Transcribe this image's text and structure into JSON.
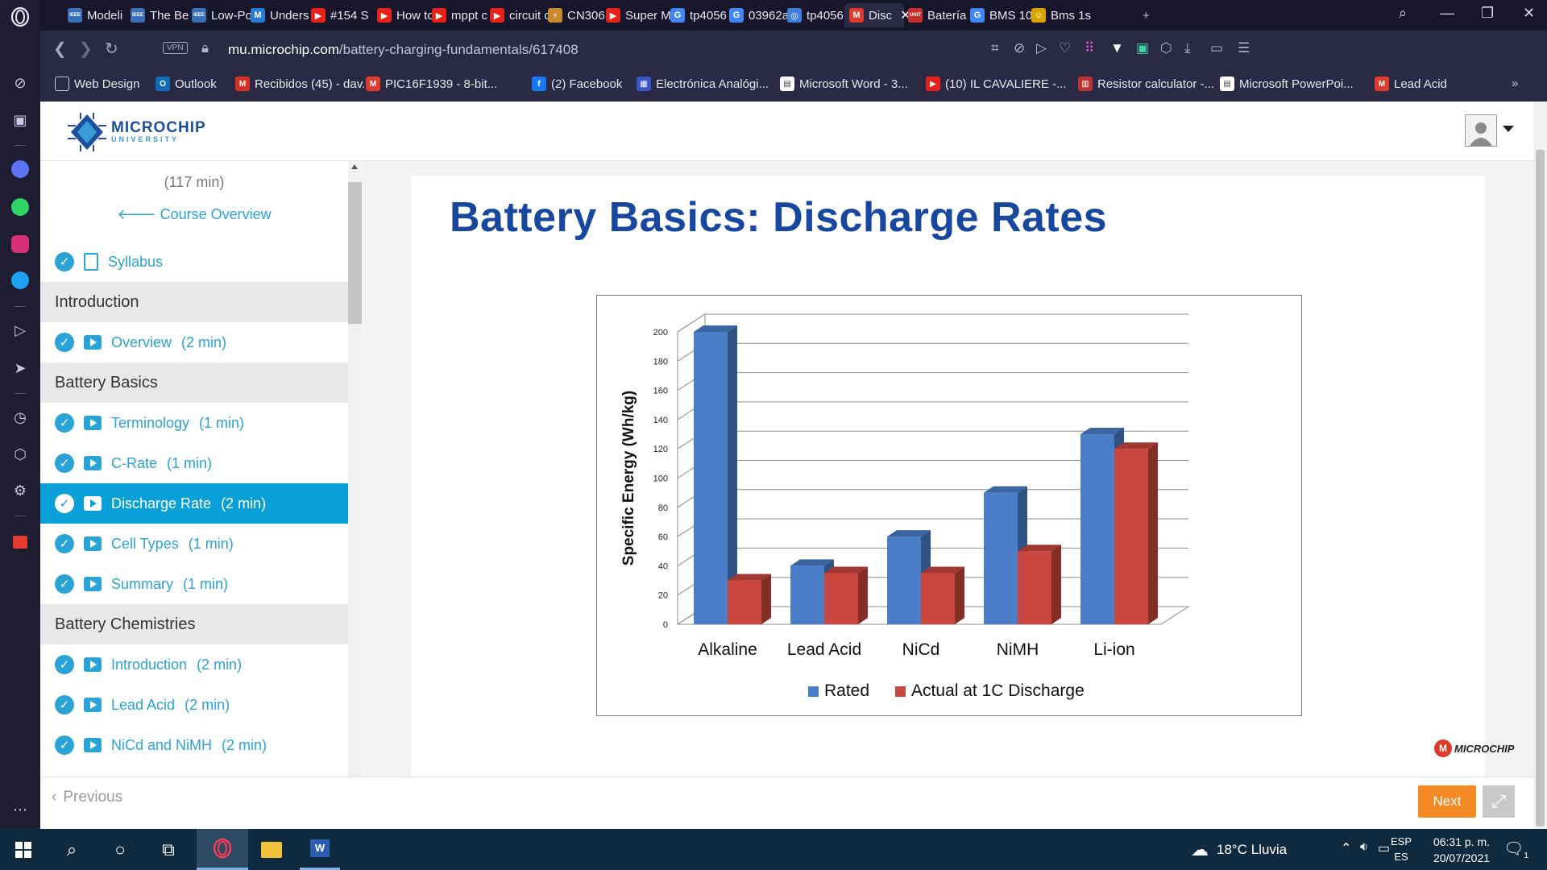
{
  "browser": {
    "tabs": [
      {
        "label": "Modeli",
        "icon_text": "IEEE",
        "color": "#3b6fb6"
      },
      {
        "label": "The Be",
        "icon_text": "IEEE",
        "color": "#3b6fb6"
      },
      {
        "label": "Low-Po",
        "icon_text": "IEEE",
        "color": "#3b6fb6"
      },
      {
        "label": "Unders",
        "icon_text": "M",
        "color": "#2a7bd6"
      },
      {
        "label": "#154 S",
        "icon_text": "▶",
        "color": "#e62117"
      },
      {
        "label": "How to",
        "icon_text": "▶",
        "color": "#e62117"
      },
      {
        "label": "mppt c",
        "icon_text": "▶",
        "color": "#e62117"
      },
      {
        "label": "circuit c",
        "icon_text": "▶",
        "color": "#e62117"
      },
      {
        "label": "CN306",
        "icon_text": "⚡",
        "color": "#c88a2a"
      },
      {
        "label": "Super M",
        "icon_text": "▶",
        "color": "#e62117"
      },
      {
        "label": "tp4056",
        "icon_text": "G",
        "color": "#4285f4"
      },
      {
        "label": "03962a",
        "icon_text": "G",
        "color": "#4285f4"
      },
      {
        "label": "tp4056",
        "icon_text": "◎",
        "color": "#3f7fe0"
      },
      {
        "label": "Disc",
        "icon_text": "M",
        "color": "#e03a2f"
      },
      {
        "label": "Batería",
        "icon_text": "UNIT",
        "color": "#c4302b"
      },
      {
        "label": "BMS 10",
        "icon_text": "G",
        "color": "#4285f4"
      },
      {
        "label": "Bms 1s",
        "icon_text": "☺",
        "color": "#d9a400"
      }
    ],
    "url_host": "mu.microchip.com",
    "url_path": "/battery-charging-fundamentals/617408",
    "vpn_label": "VPN",
    "bookmarks": [
      {
        "label": "Web Design",
        "icon_text": "▢",
        "color": "#2b2a44"
      },
      {
        "label": "Outlook",
        "icon_text": "O",
        "color": "#0f6cbd"
      },
      {
        "label": "Recibidos (45) - dav...",
        "icon_text": "M",
        "color": "#d93025"
      },
      {
        "label": "PIC16F1939 - 8-bit...",
        "icon_text": "M",
        "color": "#e03a2f"
      },
      {
        "label": "(2) Facebook",
        "icon_text": "f",
        "color": "#1877f2"
      },
      {
        "label": "Electrónica Analógi...",
        "icon_text": "▦",
        "color": "#3a56c5"
      },
      {
        "label": "Microsoft Word - 3...",
        "icon_text": "▤",
        "color": "#ffffff"
      },
      {
        "label": "(10) IL CAVALIERE -...",
        "icon_text": "▶",
        "color": "#e62117"
      },
      {
        "label": "Resistor calculator -...",
        "icon_text": "▥",
        "color": "#b33"
      },
      {
        "label": "Microsoft PowerPoi...",
        "icon_text": "▤",
        "color": "#ffffff"
      },
      {
        "label": "Lead Acid",
        "icon_text": "M",
        "color": "#e03a2f"
      }
    ]
  },
  "site": {
    "logo_name": "MICROCHIP",
    "logo_sub": "UNIVERSITY"
  },
  "course": {
    "total_time": "(117 min)",
    "overview_link": "Course Overview",
    "items": [
      {
        "kind": "item",
        "type": "doc",
        "label": "Syllabus",
        "duration": "",
        "active": false
      },
      {
        "kind": "section",
        "label": "Introduction"
      },
      {
        "kind": "item",
        "type": "video",
        "label": "Overview",
        "duration": "(2 min)",
        "active": false
      },
      {
        "kind": "section",
        "label": "Battery Basics"
      },
      {
        "kind": "item",
        "type": "video",
        "label": "Terminology",
        "duration": "(1 min)",
        "active": false
      },
      {
        "kind": "item",
        "type": "video",
        "label": "C-Rate",
        "duration": "(1 min)",
        "active": false
      },
      {
        "kind": "item",
        "type": "video",
        "label": "Discharge Rate",
        "duration": "(2 min)",
        "active": true
      },
      {
        "kind": "item",
        "type": "video",
        "label": "Cell Types",
        "duration": "(1 min)",
        "active": false
      },
      {
        "kind": "item",
        "type": "video",
        "label": "Summary",
        "duration": "(1 min)",
        "active": false
      },
      {
        "kind": "section",
        "label": "Battery Chemistries"
      },
      {
        "kind": "item",
        "type": "video",
        "label": "Introduction",
        "duration": "(2 min)",
        "active": false
      },
      {
        "kind": "item",
        "type": "video",
        "label": "Lead Acid",
        "duration": "(2 min)",
        "active": false
      },
      {
        "kind": "item",
        "type": "video",
        "label": "NiCd and NiMH",
        "duration": "(2 min)",
        "active": false
      }
    ]
  },
  "slide": {
    "title": "Battery Basics: Discharge Rates",
    "logo_text": "MICROCHIP"
  },
  "chart_data": {
    "type": "bar",
    "title": "",
    "ylabel": "Specific Energy (Wh/kg)",
    "xlabel": "",
    "categories": [
      "Alkaline",
      "Lead Acid",
      "NiCd",
      "NiMH",
      "Li-ion"
    ],
    "series": [
      {
        "name": "Rated",
        "values": [
          200,
          40,
          60,
          90,
          130
        ],
        "color": "#4a7ec9"
      },
      {
        "name": "Actual at 1C Discharge",
        "values": [
          30,
          35,
          35,
          50,
          120
        ],
        "color": "#c9473f"
      }
    ],
    "ylim": [
      0,
      200
    ],
    "yticks": [
      0,
      20,
      40,
      60,
      80,
      100,
      120,
      140,
      160,
      180,
      200
    ],
    "grid": true,
    "legend": "bottom",
    "style": "3d-column"
  },
  "nav": {
    "previous_label": "Previous",
    "next_label": "Next"
  },
  "taskbar": {
    "weather": "18°C  Lluvia",
    "lang_top": "ESP",
    "lang_bottom": "ES",
    "time": "06:31 p. m.",
    "date": "20/07/2021",
    "notification_count": "1"
  }
}
